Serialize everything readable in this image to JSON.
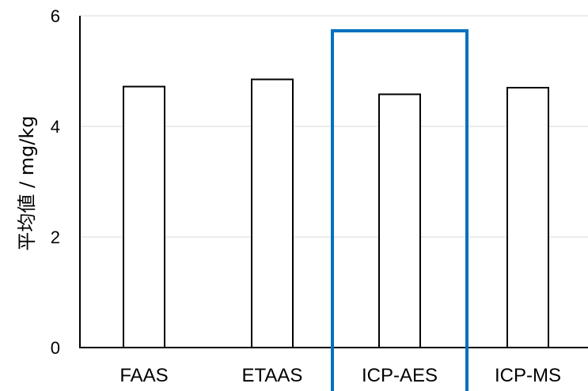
{
  "chart_data": {
    "type": "bar",
    "title": "",
    "xlabel": "",
    "ylabel": "平均値 / mg/kg",
    "categories": [
      "FAAS",
      "ETAAS",
      "ICP-AES",
      "ICP-MS"
    ],
    "values": [
      4.72,
      4.85,
      4.58,
      4.7
    ],
    "ylim": [
      0,
      6
    ],
    "yticks": [
      0,
      2,
      4,
      6
    ],
    "grid": true,
    "bar_fill": "#ffffff",
    "bar_stroke": "#000000",
    "gridline_color": "#d9d9d9",
    "highlight": {
      "category": "ICP-AES",
      "color": "#0070c0"
    }
  }
}
